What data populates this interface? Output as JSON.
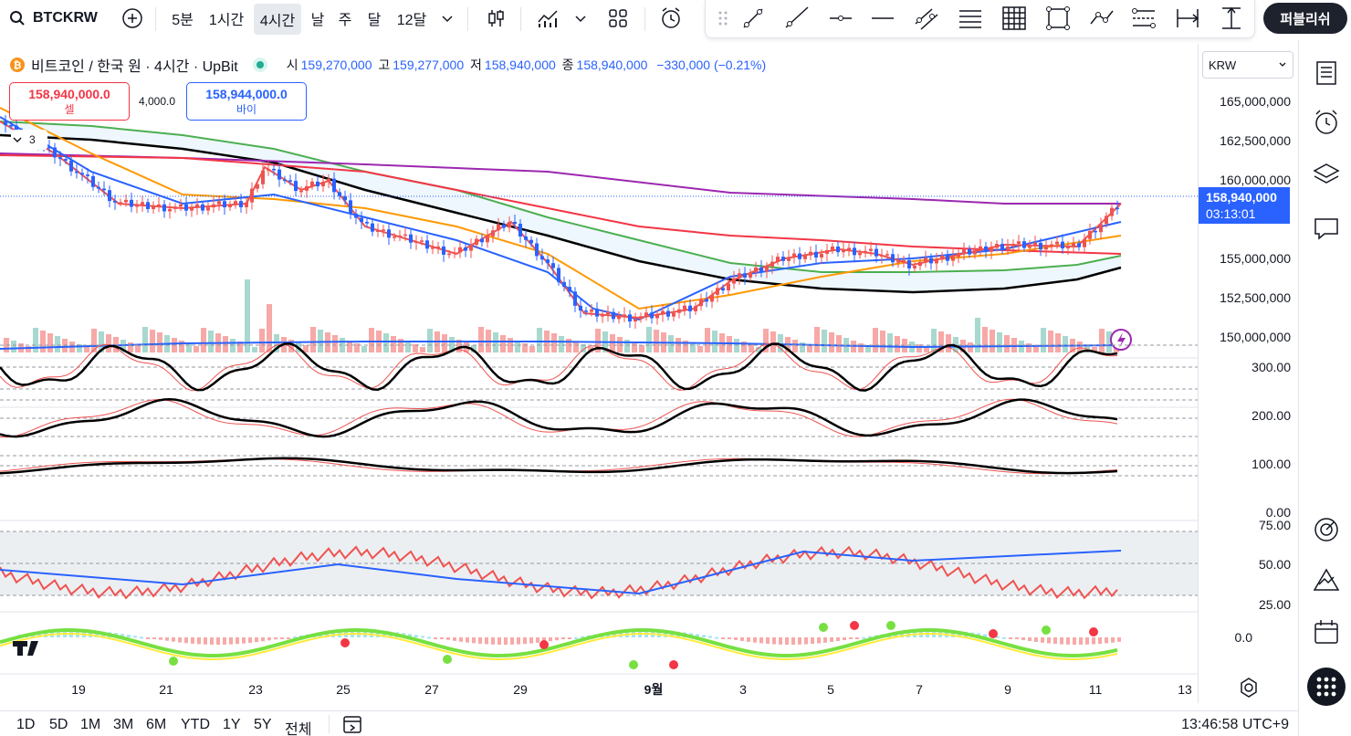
{
  "toolbar": {
    "symbol": "BTCKRW",
    "intervals": [
      "5분",
      "1시간",
      "4시간",
      "날",
      "주",
      "달",
      "12달"
    ],
    "active_interval": "4시간",
    "publish_label": "퍼블리쉬"
  },
  "legend": {
    "title": "비트코인 / 한국 원 · 4시간 · UpBit",
    "open_label": "시",
    "open": "159,270,000",
    "high_label": "고",
    "high": "159,277,000",
    "low_label": "저",
    "low": "158,940,000",
    "close_label": "종",
    "close": "158,940,000",
    "change": "−330,000 (−0.21%)",
    "sell_price": "158,940,000.0",
    "sell_label": "셀",
    "spread": "4,000.0",
    "buy_price": "158,944,000.0",
    "buy_label": "바이",
    "indicator_count": "3"
  },
  "price_axis": {
    "currency": "KRW",
    "labels": [
      "165,000,000",
      "162,500,000",
      "160,000,000",
      "155,000,000",
      "152,500,000",
      "150,000,000"
    ],
    "current_price": "158,940,000",
    "countdown": "03:13:01",
    "osc_labels": [
      "300.00",
      "200.00",
      "100.00",
      "0.00"
    ],
    "rsi_labels": [
      "75.00",
      "50.00",
      "25.00"
    ],
    "macd_labels": [
      "0.0"
    ]
  },
  "time_axis": {
    "labels": [
      "19",
      "21",
      "23",
      "25",
      "27",
      "29",
      "9월",
      "3",
      "5",
      "7",
      "9",
      "11",
      "13"
    ]
  },
  "ranges": [
    "1D",
    "5D",
    "1M",
    "3M",
    "6M",
    "YTD",
    "1Y",
    "5Y",
    "전체"
  ],
  "clock": "13:46:58 UTC+9",
  "colors": {
    "up": "#ef5350",
    "down": "#2962ff",
    "accent": "#2962ff",
    "ma_purple": "#9c27b0",
    "ma_red": "#f23645",
    "ma_orange": "#ff9800",
    "ma_green": "#4caf50",
    "ma_black": "#000000"
  }
}
